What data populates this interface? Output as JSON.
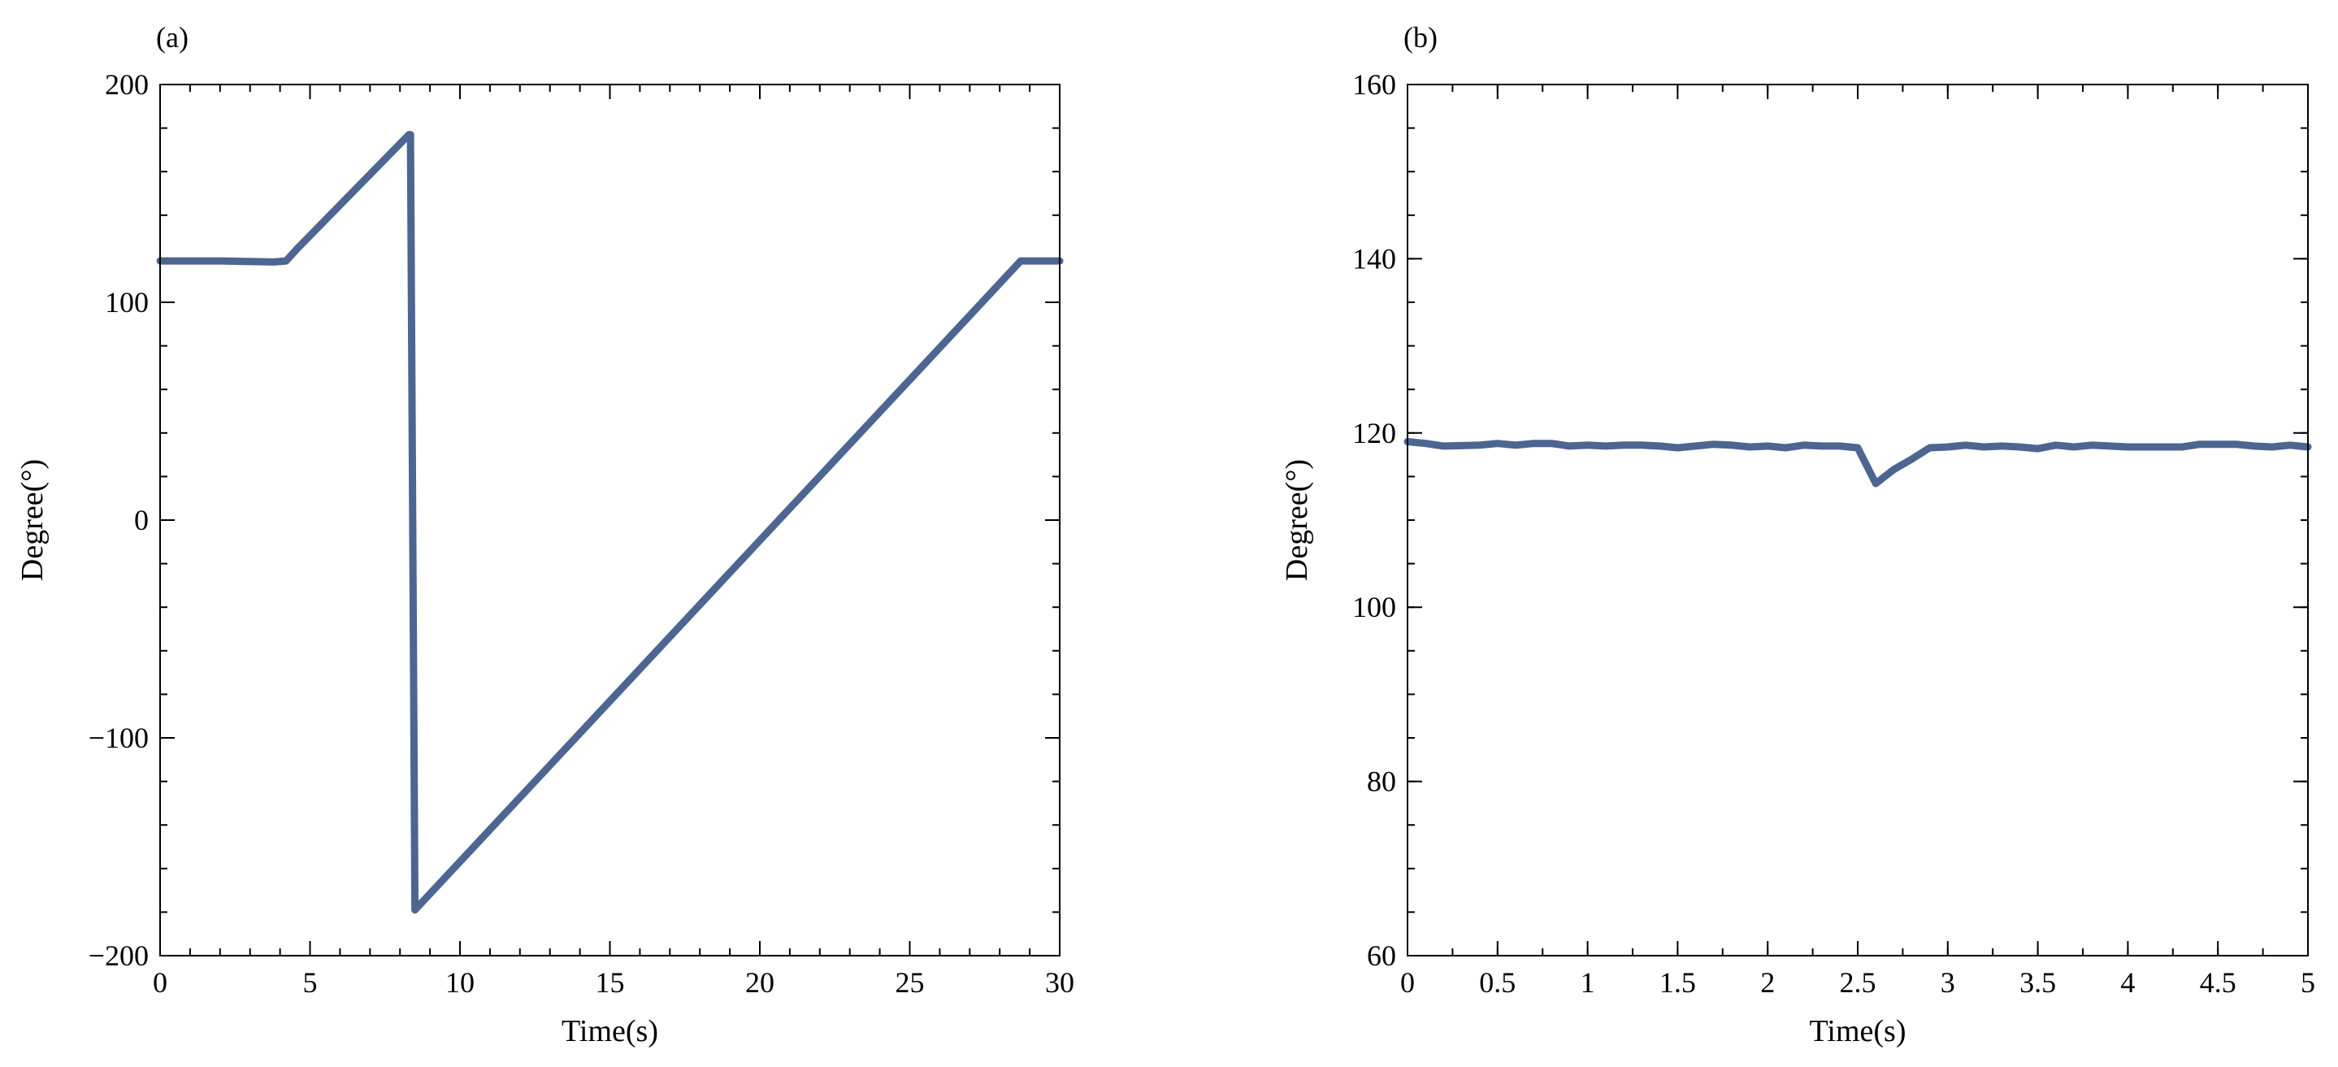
{
  "line_color": "#4d6591",
  "axis_color": "#000000",
  "chart_data": [
    {
      "type": "line",
      "panel_label": "(a)",
      "xlabel": "Time(s)",
      "ylabel": "Degree(°)",
      "xlim": [
        0,
        30
      ],
      "ylim": [
        -200,
        200
      ],
      "x_major_ticks": [
        "0",
        "5",
        "10",
        "15",
        "20",
        "25",
        "30"
      ],
      "y_major_ticks": [
        "−200",
        "−100",
        "0",
        "100",
        "200"
      ],
      "x_tick_values": [
        0,
        5,
        10,
        15,
        20,
        25,
        30
      ],
      "y_tick_values": [
        -200,
        -100,
        0,
        100,
        200
      ],
      "x_minor_step": 1,
      "y_minor_step": 20,
      "grid": false,
      "series": [
        {
          "x": [
            0,
            2,
            3.8,
            4.2,
            4.6,
            8.3,
            8.35,
            8.5,
            28.7,
            29,
            30
          ],
          "y": [
            119,
            119,
            118.5,
            119,
            125,
            177,
            177,
            -179,
            119,
            119,
            119
          ]
        }
      ]
    },
    {
      "type": "line",
      "panel_label": "(b)",
      "xlabel": "Time(s)",
      "ylabel": "Degree(°)",
      "xlim": [
        0,
        5
      ],
      "ylim": [
        60,
        160
      ],
      "x_major_ticks": [
        "0",
        "0.5",
        "1",
        "1.5",
        "2",
        "2.5",
        "3",
        "3.5",
        "4",
        "4.5",
        "5"
      ],
      "y_major_ticks": [
        "60",
        "80",
        "100",
        "120",
        "140",
        "160"
      ],
      "x_tick_values": [
        0,
        0.5,
        1,
        1.5,
        2,
        2.5,
        3,
        3.5,
        4,
        4.5,
        5
      ],
      "y_tick_values": [
        60,
        80,
        100,
        120,
        140,
        160
      ],
      "x_minor_step": 0.25,
      "y_minor_step": 5,
      "grid": false,
      "series": [
        {
          "x": [
            0,
            0.1,
            0.2,
            0.4,
            0.5,
            0.6,
            0.7,
            0.8,
            0.9,
            1.0,
            1.1,
            1.2,
            1.3,
            1.4,
            1.5,
            1.6,
            1.7,
            1.8,
            1.9,
            2.0,
            2.1,
            2.2,
            2.3,
            2.4,
            2.5,
            2.6,
            2.7,
            2.8,
            2.9,
            3.0,
            3.1,
            3.2,
            3.3,
            3.4,
            3.5,
            3.6,
            3.7,
            3.8,
            3.9,
            4.0,
            4.1,
            4.2,
            4.3,
            4.4,
            4.5,
            4.6,
            4.7,
            4.8,
            4.9,
            5.0
          ],
          "y": [
            119,
            118.8,
            118.5,
            118.6,
            118.8,
            118.6,
            118.8,
            118.8,
            118.5,
            118.6,
            118.5,
            118.6,
            118.6,
            118.5,
            118.3,
            118.5,
            118.7,
            118.6,
            118.4,
            118.5,
            118.3,
            118.6,
            118.5,
            118.5,
            118.3,
            114.2,
            115.8,
            117,
            118.3,
            118.4,
            118.6,
            118.4,
            118.5,
            118.4,
            118.2,
            118.6,
            118.4,
            118.6,
            118.5,
            118.4,
            118.4,
            118.4,
            118.4,
            118.7,
            118.7,
            118.7,
            118.5,
            118.4,
            118.6,
            118.4
          ]
        }
      ]
    }
  ]
}
